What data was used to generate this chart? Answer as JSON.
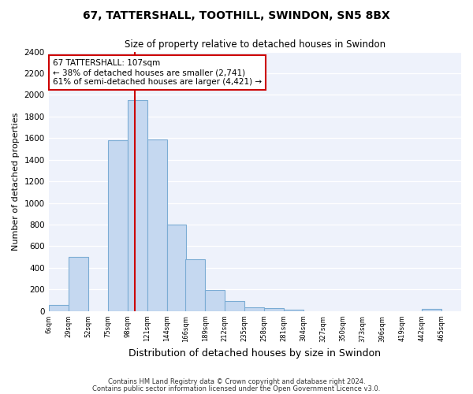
{
  "title1": "67, TATTERSHALL, TOOTHILL, SWINDON, SN5 8BX",
  "title2": "Size of property relative to detached houses in Swindon",
  "xlabel": "Distribution of detached houses by size in Swindon",
  "ylabel": "Number of detached properties",
  "footer1": "Contains HM Land Registry data © Crown copyright and database right 2024.",
  "footer2": "Contains public sector information licensed under the Open Government Licence v3.0.",
  "annotation_title": "67 TATTERSHALL: 107sqm",
  "annotation_line1": "← 38% of detached houses are smaller (2,741)",
  "annotation_line2": "61% of semi-detached houses are larger (4,421) →",
  "property_size": 107,
  "bar_color": "#c5d8f0",
  "bar_edge_color": "#7bacd4",
  "vline_color": "#cc0000",
  "annotation_box_color": "#cc0000",
  "background_color": "#eef2fb",
  "bins_left": [
    6,
    29,
    52,
    75,
    98,
    121,
    144,
    166,
    189,
    212,
    235,
    258,
    281,
    304,
    327,
    350,
    373,
    396,
    419,
    442,
    465
  ],
  "bin_width": 23,
  "bar_heights": [
    60,
    500,
    0,
    1580,
    1950,
    1590,
    800,
    480,
    195,
    90,
    35,
    30,
    10,
    0,
    0,
    0,
    0,
    0,
    0,
    20,
    0
  ],
  "ylim": [
    0,
    2400
  ],
  "yticks": [
    0,
    200,
    400,
    600,
    800,
    1000,
    1200,
    1400,
    1600,
    1800,
    2000,
    2200,
    2400
  ],
  "xtick_labels": [
    "6sqm",
    "29sqm",
    "52sqm",
    "75sqm",
    "98sqm",
    "121sqm",
    "144sqm",
    "166sqm",
    "189sqm",
    "212sqm",
    "235sqm",
    "258sqm",
    "281sqm",
    "304sqm",
    "327sqm",
    "350sqm",
    "373sqm",
    "396sqm",
    "419sqm",
    "442sqm",
    "465sqm"
  ],
  "figsize": [
    6.0,
    5.0
  ],
  "dpi": 100
}
